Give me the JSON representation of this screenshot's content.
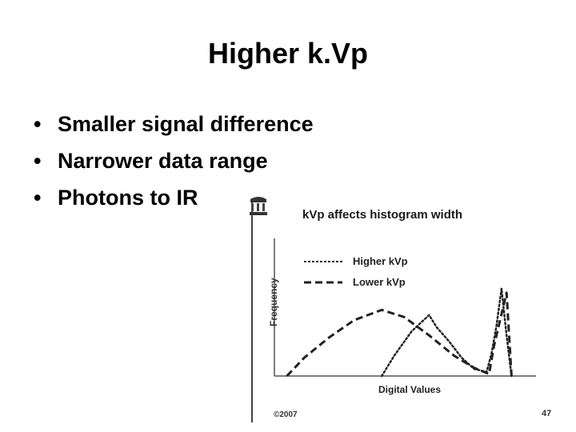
{
  "slide": {
    "title": "Higher k.Vp",
    "bullets": [
      "Smaller signal difference",
      "Narrower data range",
      "Photons to IR"
    ]
  },
  "figure": {
    "copyright": "©2007",
    "page_number": "47"
  },
  "chart_data": {
    "type": "line",
    "title": "kVp affects histogram width",
    "xlabel": "Digital Values",
    "ylabel": "Frequency",
    "ticks": "none",
    "legend_position": "top-right",
    "series": [
      {
        "name": "Higher kVp",
        "style": "dotted",
        "points": [
          [
            0.43,
            0.0
          ],
          [
            0.48,
            0.2
          ],
          [
            0.55,
            0.44
          ],
          [
            0.62,
            0.6
          ],
          [
            0.65,
            0.48
          ],
          [
            0.7,
            0.34
          ],
          [
            0.75,
            0.18
          ],
          [
            0.8,
            0.07
          ],
          [
            0.85,
            0.04
          ],
          [
            0.87,
            0.22
          ],
          [
            0.89,
            0.5
          ],
          [
            0.91,
            0.86
          ],
          [
            0.93,
            0.4
          ],
          [
            0.95,
            0.0
          ]
        ]
      },
      {
        "name": "Lower kVp",
        "style": "dashed",
        "points": [
          [
            0.05,
            0.0
          ],
          [
            0.12,
            0.18
          ],
          [
            0.22,
            0.38
          ],
          [
            0.32,
            0.55
          ],
          [
            0.43,
            0.65
          ],
          [
            0.52,
            0.58
          ],
          [
            0.62,
            0.4
          ],
          [
            0.72,
            0.2
          ],
          [
            0.8,
            0.08
          ],
          [
            0.86,
            0.02
          ],
          [
            0.88,
            0.3
          ],
          [
            0.93,
            0.82
          ],
          [
            0.95,
            0.0
          ]
        ]
      }
    ]
  }
}
